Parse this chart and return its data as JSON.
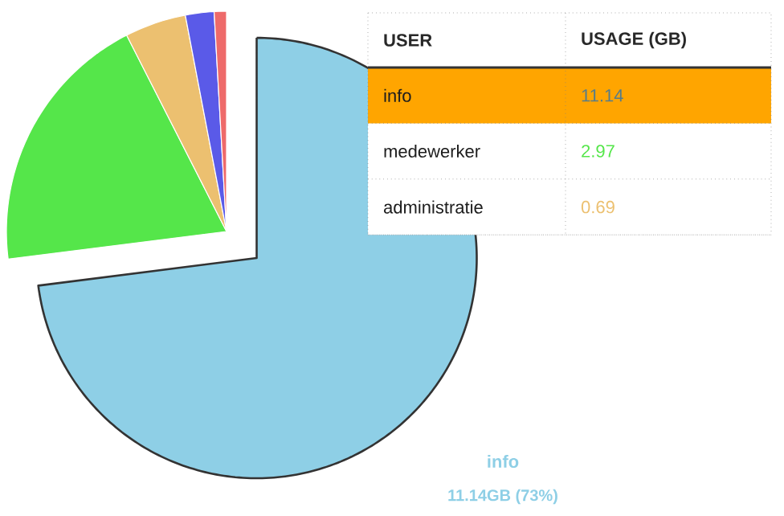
{
  "chart_data": {
    "type": "pie",
    "categories": [
      "info",
      null,
      null,
      null,
      null
    ],
    "values": [
      73,
      19.5,
      4.5,
      2.1,
      0.9
    ],
    "colors": [
      "#8ecfe6",
      "#55e64a",
      "#ecc070",
      "#5a5ae8",
      "#ee6a6a"
    ],
    "annotations": [
      "USER",
      "USAGE (GB)",
      "info",
      "11.14",
      "medewerker",
      "2.97",
      "administratie",
      "0.69",
      "11.14GB (73%)"
    ]
  }
}
